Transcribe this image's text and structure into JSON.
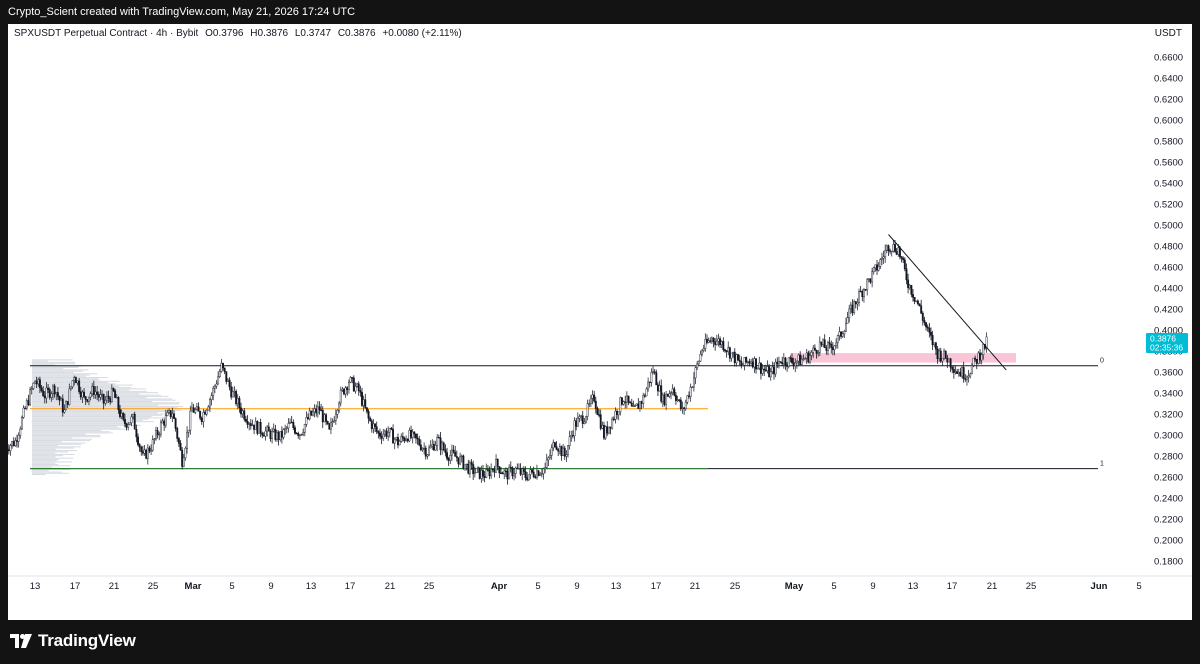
{
  "header": {
    "credit": "Crypto_Scient created with TradingView.com, May 21, 2026 17:24 UTC"
  },
  "legend": {
    "symbol": "SPXUSDT Perpetual Contract · 4h · Bybit",
    "open": "O0.3796",
    "high": "H0.3876",
    "low": "L0.3747",
    "close": "C0.3876",
    "change": "+0.0080 (+2.11%)"
  },
  "axis_unit": "USDT",
  "price_label": {
    "price": "0.3876",
    "countdown": "02:35:36"
  },
  "fib_labels": [
    "0",
    "1"
  ],
  "footer": {
    "brand": "TradingView"
  },
  "colors": {
    "up": "#2a2e39",
    "down": "#2a2e39",
    "accent": "#00bcd4",
    "support": "#2e7d32",
    "poc": "#ff9800",
    "zone": "#f8bbd0"
  },
  "chart_data": {
    "type": "candlestick",
    "timeframe": "4h",
    "y_ticks": [
      "0.6600",
      "0.6400",
      "0.6200",
      "0.6000",
      "0.5800",
      "0.5600",
      "0.5400",
      "0.5200",
      "0.5000",
      "0.4800",
      "0.4600",
      "0.4400",
      "0.4200",
      "0.4000",
      "0.3800",
      "0.3600",
      "0.3400",
      "0.3200",
      "0.3000",
      "0.2800",
      "0.2600",
      "0.2400",
      "0.2200",
      "0.2000",
      "0.1800"
    ],
    "ylim": [
      0.168,
      0.672
    ],
    "x_ticks": [
      "13",
      "17",
      "21",
      "25",
      "Mar",
      "5",
      "9",
      "13",
      "17",
      "21",
      "25",
      "Apr",
      "5",
      "9",
      "13",
      "17",
      "21",
      "25",
      "May",
      "5",
      "9",
      "13",
      "17",
      "21",
      "25",
      "Jun",
      "5"
    ],
    "x_ticks_bold": [
      "Mar",
      "Apr",
      "May",
      "Jun"
    ],
    "price_path": [
      [
        "Feb 10",
        0.288
      ],
      [
        "Feb 11",
        0.294
      ],
      [
        "Feb 12",
        0.325
      ],
      [
        "Feb 13",
        0.352
      ],
      [
        "Feb 14",
        0.338
      ],
      [
        "Feb 15",
        0.345
      ],
      [
        "Feb 16",
        0.322
      ],
      [
        "Feb 17",
        0.358
      ],
      [
        "Feb 18",
        0.334
      ],
      [
        "Feb 19",
        0.343
      ],
      [
        "Feb 20",
        0.331
      ],
      [
        "Feb 21",
        0.34
      ],
      [
        "Feb 22",
        0.311
      ],
      [
        "Feb 23",
        0.315
      ],
      [
        "Feb 24",
        0.278
      ],
      [
        "Feb 25",
        0.292
      ],
      [
        "Feb 26",
        0.312
      ],
      [
        "Feb 27",
        0.322
      ],
      [
        "Feb 28",
        0.276
      ],
      [
        "Mar 1",
        0.325
      ],
      [
        "Mar 2",
        0.318
      ],
      [
        "Mar 3",
        0.338
      ],
      [
        "Mar 4",
        0.365
      ],
      [
        "Mar 5",
        0.342
      ],
      [
        "Mar 6",
        0.324
      ],
      [
        "Mar 7",
        0.312
      ],
      [
        "Mar 8",
        0.305
      ],
      [
        "Mar 9",
        0.301
      ],
      [
        "Mar 10",
        0.298
      ],
      [
        "Mar 11",
        0.31
      ],
      [
        "Mar 12",
        0.302
      ],
      [
        "Mar 13",
        0.318
      ],
      [
        "Mar 14",
        0.325
      ],
      [
        "Mar 15",
        0.302
      ],
      [
        "Mar 16",
        0.335
      ],
      [
        "Mar 17",
        0.352
      ],
      [
        "Mar 18",
        0.342
      ],
      [
        "Mar 19",
        0.315
      ],
      [
        "Mar 20",
        0.301
      ],
      [
        "Mar 21",
        0.303
      ],
      [
        "Mar 22",
        0.293
      ],
      [
        "Mar 23",
        0.3
      ],
      [
        "Mar 24",
        0.294
      ],
      [
        "Mar 25",
        0.284
      ],
      [
        "Mar 26",
        0.295
      ],
      [
        "Mar 27",
        0.282
      ],
      [
        "Mar 28",
        0.279
      ],
      [
        "Mar 29",
        0.27
      ],
      [
        "Mar 30",
        0.264
      ],
      [
        "Mar 31",
        0.262
      ],
      [
        "Apr 1",
        0.272
      ],
      [
        "Apr 2",
        0.262
      ],
      [
        "Apr 3",
        0.267
      ],
      [
        "Apr 4",
        0.261
      ],
      [
        "Apr 5",
        0.265
      ],
      [
        "Apr 6",
        0.268
      ],
      [
        "Apr 7",
        0.294
      ],
      [
        "Apr 8",
        0.28
      ],
      [
        "Apr 9",
        0.31
      ],
      [
        "Apr 10",
        0.318
      ],
      [
        "Apr 11",
        0.336
      ],
      [
        "Apr 12",
        0.3
      ],
      [
        "Apr 13",
        0.318
      ],
      [
        "Apr 14",
        0.336
      ],
      [
        "Apr 15",
        0.322
      ],
      [
        "Apr 16",
        0.335
      ],
      [
        "Apr 17",
        0.362
      ],
      [
        "Apr 18",
        0.333
      ],
      [
        "Apr 19",
        0.345
      ],
      [
        "Apr 20",
        0.322
      ],
      [
        "Apr 21",
        0.35
      ],
      [
        "Apr 22",
        0.382
      ],
      [
        "Apr 23",
        0.392
      ],
      [
        "Apr 24",
        0.388
      ],
      [
        "Apr 25",
        0.377
      ],
      [
        "Apr 26",
        0.366
      ],
      [
        "Apr 27",
        0.372
      ],
      [
        "Apr 28",
        0.364
      ],
      [
        "Apr 29",
        0.358
      ],
      [
        "Apr 30",
        0.372
      ],
      [
        "May 1",
        0.37
      ],
      [
        "May 2",
        0.371
      ],
      [
        "May 3",
        0.376
      ],
      [
        "May 4",
        0.386
      ],
      [
        "May 5",
        0.382
      ],
      [
        "May 6",
        0.393
      ],
      [
        "May 7",
        0.415
      ],
      [
        "May 8",
        0.433
      ],
      [
        "May 9",
        0.447
      ],
      [
        "May 10",
        0.462
      ],
      [
        "May 11",
        0.481
      ],
      [
        "May 12",
        0.477
      ],
      [
        "May 13",
        0.445
      ],
      [
        "May 14",
        0.425
      ],
      [
        "May 15",
        0.398
      ],
      [
        "May 16",
        0.378
      ],
      [
        "May 17",
        0.373
      ],
      [
        "May 18",
        0.361
      ],
      [
        "May 19",
        0.358
      ],
      [
        "May 20",
        0.372
      ],
      [
        "May 21",
        0.3876
      ]
    ],
    "horizontal_lines": [
      {
        "role": "resistance",
        "price": 0.366
      },
      {
        "role": "point_of_control",
        "price": 0.325
      },
      {
        "role": "support",
        "price": 0.268
      }
    ],
    "fib_levels": [
      {
        "label": "0",
        "price": 0.366
      },
      {
        "label": "1",
        "price": 0.268
      }
    ],
    "trendline": {
      "from": [
        "May 11",
        0.491
      ],
      "to": [
        "May 23",
        0.362
      ]
    },
    "zone": {
      "from": "May 1",
      "to": "May 24",
      "price_low": 0.369,
      "price_high": 0.378
    },
    "last_price": 0.3876,
    "volume_profile": {
      "price_range": [
        0.262,
        0.372
      ]
    },
    "grid": false
  }
}
